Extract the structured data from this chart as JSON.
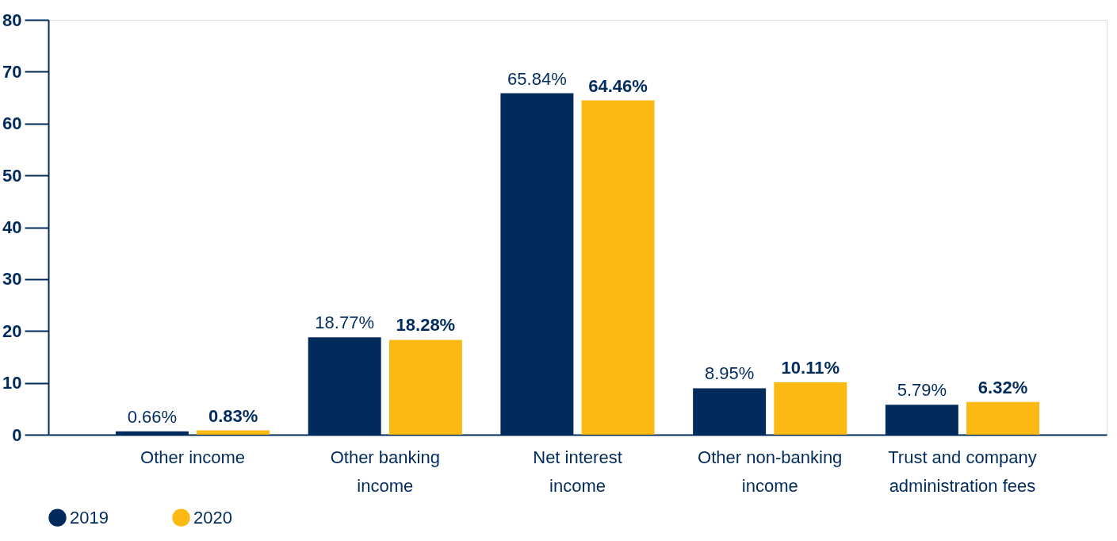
{
  "chart_data": {
    "type": "bar",
    "categories": [
      "Other income",
      "Other banking income",
      "Net interest income",
      "Other non-banking income",
      "Trust and company administration fees"
    ],
    "series": [
      {
        "name": "2019",
        "color": "#002b5c",
        "values": [
          0.66,
          18.77,
          65.84,
          8.95,
          5.79
        ],
        "value_labels": [
          "0.66%",
          "18.77%",
          "65.84%",
          "8.95%",
          "5.79%"
        ]
      },
      {
        "name": "2020",
        "color": "#fdb913",
        "values": [
          0.83,
          18.28,
          64.46,
          10.11,
          6.32
        ],
        "value_labels": [
          "0.83%",
          "18.28%",
          "64.46%",
          "10.11%",
          "6.32%"
        ]
      }
    ],
    "ylim": [
      0,
      80
    ],
    "yticks": [
      0,
      10,
      20,
      30,
      40,
      50,
      60,
      70,
      80
    ],
    "grid": false,
    "legend": "bottom"
  }
}
